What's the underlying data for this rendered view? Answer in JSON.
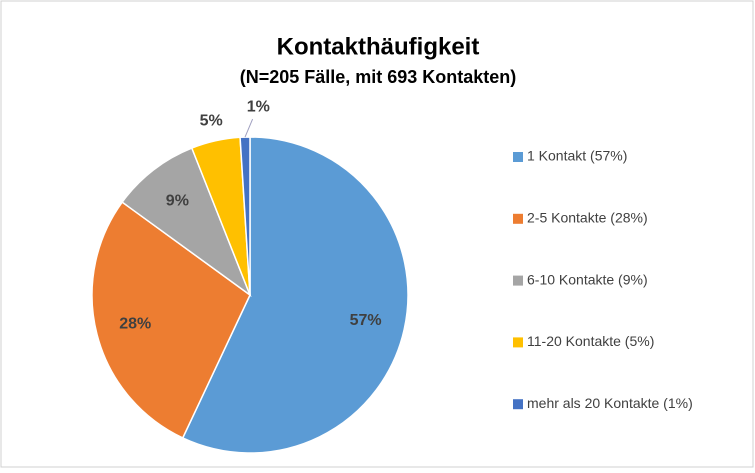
{
  "chart_data": {
    "type": "pie",
    "title": "Kontakthäufigkeit",
    "subtitle": "(N=205 Fälle, mit 693 Kontakten)",
    "categories": [
      "1 Kontakt (57%)",
      "2-5 Kontakte (28%)",
      "6-10 Kontakte (9%)",
      "11-20 Kontakte (5%)",
      "mehr als 20 Kontakte (1%)"
    ],
    "values": [
      57,
      28,
      9,
      5,
      1
    ],
    "value_labels": [
      "57%",
      "28%",
      "9%",
      "5%",
      "1%"
    ],
    "colors": [
      "#5b9bd5",
      "#ed7d31",
      "#a5a5a5",
      "#ffc000",
      "#4472c4"
    ],
    "legend": "right"
  }
}
